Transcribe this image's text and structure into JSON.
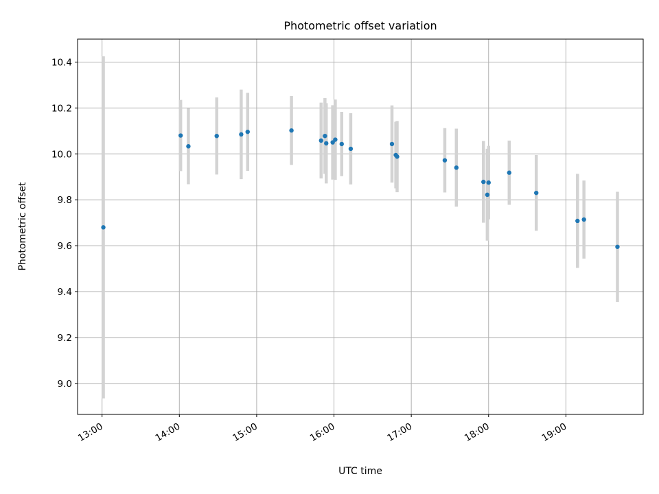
{
  "chart_data": {
    "type": "scatter",
    "title": "Photometric offset variation",
    "xlabel": "UTC time",
    "ylabel": "Photometric offset",
    "x_axis_type": "time",
    "xlim": [
      "12:41",
      "20:00"
    ],
    "ylim": [
      8.865,
      10.5
    ],
    "x_ticks": [
      "13:00",
      "14:00",
      "15:00",
      "16:00",
      "17:00",
      "18:00",
      "19:00"
    ],
    "y_ticks": [
      "9.0",
      "9.2",
      "9.4",
      "9.6",
      "9.8",
      "10.0",
      "10.2",
      "10.4"
    ],
    "grid": true,
    "legend": "none",
    "colors": {
      "points": "#1f77b4",
      "errorbars": "#d3d3d3",
      "grid": "#b0b0b0"
    },
    "points": [
      {
        "x": "13:01",
        "y": 9.68,
        "yerr": 0.745
      },
      {
        "x": "14:01",
        "y": 10.08,
        "yerr": 0.155
      },
      {
        "x": "14:07",
        "y": 10.033,
        "yerr": 0.165
      },
      {
        "x": "14:29",
        "y": 10.078,
        "yerr": 0.168
      },
      {
        "x": "14:48",
        "y": 10.085,
        "yerr": 0.195
      },
      {
        "x": "14:53",
        "y": 10.096,
        "yerr": 0.17
      },
      {
        "x": "15:27",
        "y": 10.102,
        "yerr": 0.15
      },
      {
        "x": "15:50",
        "y": 10.058,
        "yerr": 0.165
      },
      {
        "x": "15:53",
        "y": 10.078,
        "yerr": 0.165
      },
      {
        "x": "15:54",
        "y": 10.046,
        "yerr": 0.175
      },
      {
        "x": "15:59",
        "y": 10.05,
        "yerr": 0.162
      },
      {
        "x": "16:01",
        "y": 10.062,
        "yerr": 0.175
      },
      {
        "x": "16:06",
        "y": 10.043,
        "yerr": 0.14
      },
      {
        "x": "16:13",
        "y": 10.022,
        "yerr": 0.155
      },
      {
        "x": "16:45",
        "y": 10.043,
        "yerr": 0.168
      },
      {
        "x": "16:48",
        "y": 9.995,
        "yerr": 0.145
      },
      {
        "x": "16:49",
        "y": 9.988,
        "yerr": 0.155
      },
      {
        "x": "17:26",
        "y": 9.972,
        "yerr": 0.14
      },
      {
        "x": "17:35",
        "y": 9.94,
        "yerr": 0.17
      },
      {
        "x": "17:56",
        "y": 9.878,
        "yerr": 0.178
      },
      {
        "x": "17:59",
        "y": 9.822,
        "yerr": 0.2
      },
      {
        "x": "18:00",
        "y": 9.875,
        "yerr": 0.16
      },
      {
        "x": "18:16",
        "y": 9.918,
        "yerr": 0.14
      },
      {
        "x": "18:37",
        "y": 9.83,
        "yerr": 0.165
      },
      {
        "x": "19:09",
        "y": 9.708,
        "yerr": 0.205
      },
      {
        "x": "19:14",
        "y": 9.714,
        "yerr": 0.17
      },
      {
        "x": "19:40",
        "y": 9.595,
        "yerr": 0.24
      }
    ]
  }
}
